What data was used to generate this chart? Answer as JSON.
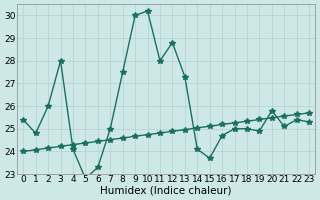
{
  "x_vals": [
    0,
    1,
    2,
    3,
    4,
    5,
    6,
    7,
    8,
    9,
    10,
    11,
    12,
    13,
    14,
    15,
    16,
    17,
    18,
    19,
    20,
    21,
    22,
    23
  ],
  "y_main": [
    25.4,
    24.8,
    26.0,
    28.0,
    24.1,
    22.8,
    23.3,
    25.0,
    27.5,
    30.0,
    30.2,
    28.0,
    28.8,
    27.3,
    24.1,
    23.7,
    24.7,
    25.0,
    25.0,
    24.9,
    25.8,
    25.1,
    25.4,
    25.3
  ],
  "y_linear": [
    24.0,
    24.07,
    24.15,
    24.22,
    24.3,
    24.37,
    24.44,
    24.52,
    24.59,
    24.67,
    24.74,
    24.81,
    24.89,
    24.96,
    25.04,
    25.11,
    25.19,
    25.26,
    25.33,
    25.41,
    25.48,
    25.56,
    25.63,
    25.7
  ],
  "line_color": "#1a7060",
  "bg_color": "#cde8e6",
  "grid_color": "#b0d0ce",
  "xlabel": "Humidex (Indice chaleur)",
  "ylim": [
    23,
    30.5
  ],
  "xlim": [
    -0.5,
    23.5
  ],
  "yticks": [
    23,
    24,
    25,
    26,
    27,
    28,
    29,
    30
  ],
  "xticks": [
    0,
    1,
    2,
    3,
    4,
    5,
    6,
    7,
    8,
    9,
    10,
    11,
    12,
    13,
    14,
    15,
    16,
    17,
    18,
    19,
    20,
    21,
    22,
    23
  ],
  "marker": "*",
  "marker_size": 4,
  "line_width": 1.0,
  "tick_font_size": 6.5,
  "xlabel_font_size": 7.5
}
